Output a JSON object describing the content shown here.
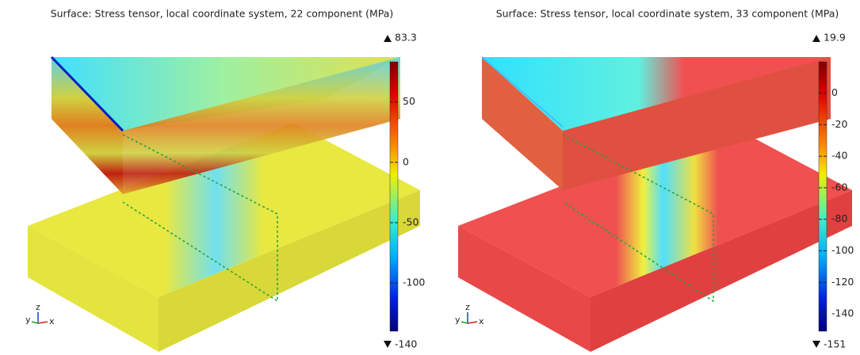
{
  "panels": [
    {
      "title": "Surface: Stress tensor, local coordinate system, 22 component (MPa)",
      "colorbar": {
        "max": 83.3,
        "min": -140,
        "ticks": [
          50,
          0,
          -50,
          -100
        ]
      },
      "triad": [
        "y",
        "z",
        "x"
      ]
    },
    {
      "title": "Surface: Stress tensor, local coordinate system, 33 component (MPa)",
      "colorbar": {
        "max": 19.9,
        "min": -151,
        "ticks": [
          0,
          -20,
          -40,
          -60,
          -80,
          -100,
          -120,
          -140
        ]
      },
      "triad": [
        "y",
        "z",
        "x"
      ]
    }
  ]
}
